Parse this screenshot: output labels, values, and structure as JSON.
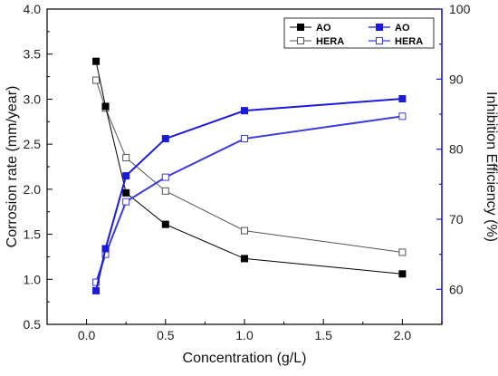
{
  "chart_data": {
    "type": "line",
    "xlabel": "Concentration (g/L)",
    "ylabel_left": "Corrosion rate (mm/year)",
    "ylabel_right": "Inhibition Efficiency (%)",
    "xlim": [
      -0.25,
      2.25
    ],
    "ylim_left": [
      0.5,
      4.0
    ],
    "ylim_right": [
      55,
      100
    ],
    "x_ticks": [
      "0.0",
      "0.5",
      "1.0",
      "1.5",
      "2.0"
    ],
    "y_left_ticks": [
      "0.5",
      "1.0",
      "1.5",
      "2.0",
      "2.5",
      "3.0",
      "3.5",
      "4.0"
    ],
    "y_right_ticks": [
      "60",
      "70",
      "80",
      "90",
      "100"
    ],
    "grid": false,
    "legend_position": "top-right",
    "colors": {
      "left_axis": "#000000",
      "right_axis": "#1a1adc"
    },
    "series": [
      {
        "name": "AO",
        "axis": "left",
        "color": "#000000",
        "marker": "filled-square",
        "x": [
          0.06,
          0.12,
          0.25,
          0.5,
          1.0,
          2.0
        ],
        "values": [
          3.42,
          2.92,
          1.96,
          1.61,
          1.23,
          1.06
        ]
      },
      {
        "name": "HERA",
        "axis": "left",
        "color": "#555555",
        "marker": "open-square",
        "x": [
          0.06,
          0.12,
          0.25,
          0.5,
          1.0,
          2.0
        ],
        "values": [
          3.21,
          2.9,
          2.35,
          1.98,
          1.54,
          1.3
        ]
      },
      {
        "name": "AO",
        "axis": "right",
        "color": "#1a1adc",
        "marker": "filled-square",
        "x": [
          0.06,
          0.12,
          0.25,
          0.5,
          1.0,
          2.0
        ],
        "values": [
          59.8,
          65.8,
          76.2,
          81.5,
          85.5,
          87.2
        ]
      },
      {
        "name": "HERA",
        "axis": "right",
        "color": "#3a3ae0",
        "marker": "open-square",
        "x": [
          0.06,
          0.12,
          0.25,
          0.5,
          1.0,
          2.0
        ],
        "values": [
          61.0,
          65.0,
          72.5,
          76.0,
          81.5,
          84.7
        ]
      }
    ]
  }
}
